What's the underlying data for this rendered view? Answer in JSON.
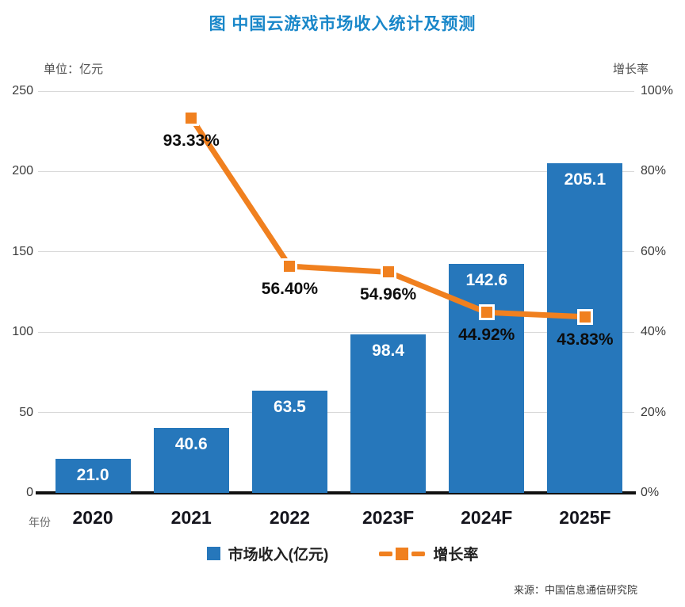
{
  "title": "图  中国云游戏市场收入统计及预测",
  "axes": {
    "left_unit": "单位：亿元",
    "right_unit": "增长率",
    "left_ticks": [
      "250",
      "200",
      "150",
      "100",
      "50",
      "0"
    ],
    "right_ticks": [
      "100%",
      "80%",
      "60%",
      "40%",
      "20%",
      "0%"
    ],
    "x_label": "年份"
  },
  "chart_data": {
    "type": "bar+line",
    "title": "图 中国云游戏市场收入统计及预测",
    "categories": [
      "2020",
      "2021",
      "2022",
      "2023F",
      "2024F",
      "2025F"
    ],
    "series": [
      {
        "name": "市场收入(亿元)",
        "type": "bar",
        "axis": "left",
        "color": "#2677BB",
        "values": [
          21.0,
          40.6,
          63.5,
          98.4,
          142.6,
          205.1
        ],
        "labels": [
          "21.0",
          "40.6",
          "63.5",
          "98.4",
          "142.6",
          "205.1"
        ]
      },
      {
        "name": "增长率",
        "type": "line",
        "axis": "right",
        "color": "#F0801F",
        "values": [
          null,
          93.33,
          56.4,
          54.96,
          44.92,
          43.83
        ],
        "labels": [
          null,
          "93.33%",
          "56.40%",
          "54.96%",
          "44.92%",
          "43.83%"
        ]
      }
    ],
    "ylim_left": [
      0,
      250
    ],
    "ylim_right": [
      0,
      100
    ],
    "y_ticks_left": [
      250,
      200,
      150,
      100,
      50,
      0
    ],
    "y_ticks_right": [
      100,
      80,
      60,
      40,
      20,
      0
    ],
    "grid": true,
    "legend_position": "bottom"
  },
  "legend": {
    "bar_label": "市场收入(亿元)",
    "line_label": "增长率"
  },
  "source": "来源：中国信息通信研究院",
  "colors": {
    "bar": "#2677BB",
    "line": "#F0801F",
    "title": "#1987C9",
    "grid": "#D9D9D9",
    "axis": "#111111"
  }
}
